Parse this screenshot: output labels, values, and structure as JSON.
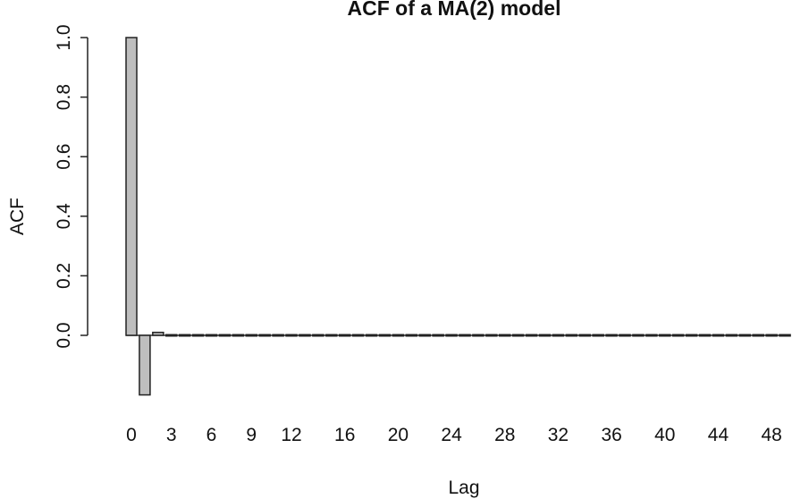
{
  "chart_data": {
    "type": "bar",
    "title": "ACF of a MA(2) model",
    "xlabel": "Lag",
    "ylabel": "ACF",
    "x": [
      0,
      1,
      2,
      3,
      4,
      5,
      6,
      7,
      8,
      9,
      10,
      11,
      12,
      13,
      14,
      15,
      16,
      17,
      18,
      19,
      20,
      21,
      22,
      23,
      24,
      25,
      26,
      27,
      28,
      29,
      30,
      31,
      32,
      33,
      34,
      35,
      36,
      37,
      38,
      39,
      40,
      41,
      42,
      43,
      44,
      45,
      46,
      47,
      48,
      49
    ],
    "values": [
      1.0,
      -0.2,
      0.01,
      0,
      0,
      0,
      0,
      0,
      0,
      0,
      0,
      0,
      0,
      0,
      0,
      0,
      0,
      0,
      0,
      0,
      0,
      0,
      0,
      0,
      0,
      0,
      0,
      0,
      0,
      0,
      0,
      0,
      0,
      0,
      0,
      0,
      0,
      0,
      0,
      0,
      0,
      0,
      0,
      0,
      0,
      0,
      0,
      0,
      0,
      0
    ],
    "x_ticks": [
      "0",
      "3",
      "6",
      "9",
      "12",
      "16",
      "20",
      "24",
      "28",
      "32",
      "36",
      "40",
      "44",
      "48"
    ],
    "x_tick_values": [
      0,
      3,
      6,
      9,
      12,
      16,
      20,
      24,
      28,
      32,
      36,
      40,
      44,
      48
    ],
    "y_ticks": [
      "0.0",
      "0.2",
      "0.4",
      "0.6",
      "0.8",
      "1.0"
    ],
    "y_tick_values": [
      0,
      0.2,
      0.4,
      0.6,
      0.8,
      1.0
    ],
    "ylim": [
      -0.2,
      1.0
    ],
    "xlim": [
      -0.5,
      49.5
    ],
    "bar_fill": "#bebebe",
    "bar_stroke": "#222222",
    "grid": false,
    "legend": "none"
  }
}
